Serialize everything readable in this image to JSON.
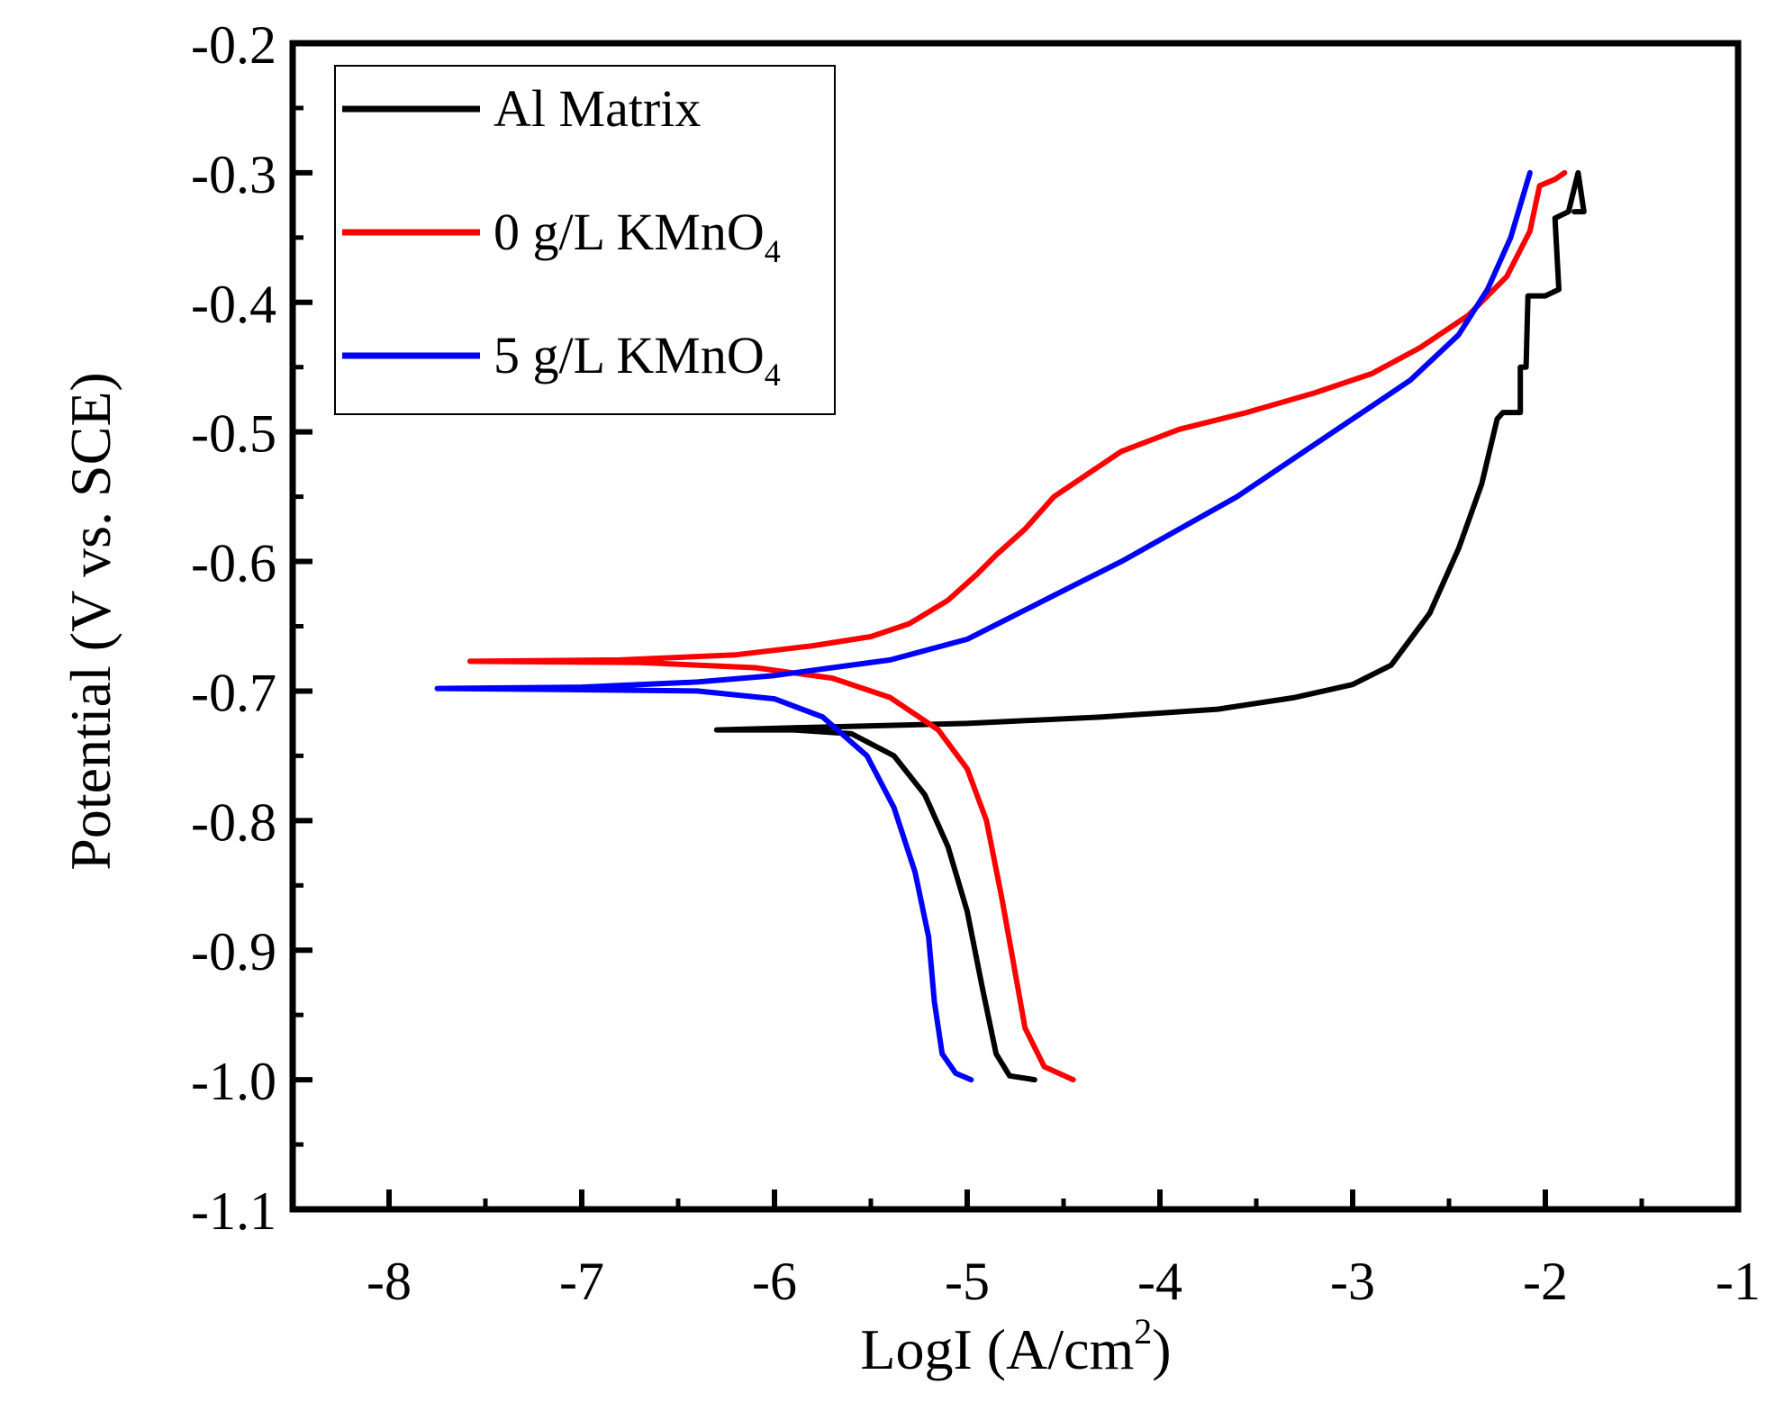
{
  "chart_data": {
    "type": "line",
    "title": "",
    "xlabel": "LogI (A/cm",
    "xlabel_sup": "2",
    "xlabel_close": ")",
    "ylabel": "Potential (V vs. SCE)",
    "xlim": [
      -8.5,
      -1
    ],
    "ylim": [
      -1.1,
      -0.2
    ],
    "x_ticks": [
      -8,
      -7,
      -6,
      -5,
      -4,
      -3,
      -2,
      -1
    ],
    "x_tick_labels": [
      "-8",
      "-7",
      "-6",
      "-5",
      "-4",
      "-3",
      "-2",
      "-1"
    ],
    "y_ticks": [
      -1.1,
      -1.0,
      -0.9,
      -0.8,
      -0.7,
      -0.6,
      -0.5,
      -0.4,
      -0.3,
      -0.2
    ],
    "y_tick_labels": [
      "-1.1",
      "-1.0",
      "-0.9",
      "-0.8",
      "-0.7",
      "-0.6",
      "-0.5",
      "-0.4",
      "-0.3",
      "-0.2"
    ],
    "grid": false,
    "legend_position": "top-left",
    "series": [
      {
        "name": "Al Matrix",
        "label_main": "Al Matrix",
        "label_sub": "",
        "color": "#000000",
        "points": [
          [
            -4.65,
            -1.0
          ],
          [
            -4.78,
            -0.997
          ],
          [
            -4.85,
            -0.98
          ],
          [
            -4.92,
            -0.93
          ],
          [
            -5.0,
            -0.87
          ],
          [
            -5.1,
            -0.82
          ],
          [
            -5.22,
            -0.78
          ],
          [
            -5.38,
            -0.75
          ],
          [
            -5.6,
            -0.733
          ],
          [
            -5.9,
            -0.73
          ],
          [
            -6.3,
            -0.73
          ],
          [
            -5.8,
            -0.728
          ],
          [
            -5.0,
            -0.725
          ],
          [
            -4.3,
            -0.72
          ],
          [
            -3.7,
            -0.714
          ],
          [
            -3.3,
            -0.705
          ],
          [
            -3.0,
            -0.695
          ],
          [
            -2.8,
            -0.68
          ],
          [
            -2.6,
            -0.64
          ],
          [
            -2.45,
            -0.59
          ],
          [
            -2.33,
            -0.54
          ],
          [
            -2.25,
            -0.49
          ],
          [
            -2.22,
            -0.485
          ],
          [
            -2.13,
            -0.485
          ],
          [
            -2.13,
            -0.45
          ],
          [
            -2.1,
            -0.45
          ],
          [
            -2.09,
            -0.395
          ],
          [
            -2.0,
            -0.395
          ],
          [
            -1.93,
            -0.39
          ],
          [
            -1.95,
            -0.335
          ],
          [
            -1.88,
            -0.33
          ],
          [
            -1.83,
            -0.3
          ],
          [
            -1.8,
            -0.33
          ],
          [
            -1.85,
            -0.33
          ]
        ]
      },
      {
        "name": "0 g/L KMnO4",
        "label_main": "0 g/L KMnO",
        "label_sub": "4",
        "color": "#ff0000",
        "points": [
          [
            -4.45,
            -1.0
          ],
          [
            -4.6,
            -0.99
          ],
          [
            -4.7,
            -0.96
          ],
          [
            -4.76,
            -0.91
          ],
          [
            -4.82,
            -0.86
          ],
          [
            -4.9,
            -0.8
          ],
          [
            -5.0,
            -0.76
          ],
          [
            -5.15,
            -0.73
          ],
          [
            -5.4,
            -0.705
          ],
          [
            -5.7,
            -0.69
          ],
          [
            -6.1,
            -0.682
          ],
          [
            -6.7,
            -0.678
          ],
          [
            -7.58,
            -0.677
          ],
          [
            -6.8,
            -0.676
          ],
          [
            -6.2,
            -0.672
          ],
          [
            -5.8,
            -0.665
          ],
          [
            -5.5,
            -0.658
          ],
          [
            -5.3,
            -0.648
          ],
          [
            -5.1,
            -0.63
          ],
          [
            -4.95,
            -0.61
          ],
          [
            -4.85,
            -0.595
          ],
          [
            -4.7,
            -0.575
          ],
          [
            -4.55,
            -0.55
          ],
          [
            -4.4,
            -0.535
          ],
          [
            -4.2,
            -0.515
          ],
          [
            -3.9,
            -0.498
          ],
          [
            -3.55,
            -0.485
          ],
          [
            -3.2,
            -0.47
          ],
          [
            -2.9,
            -0.455
          ],
          [
            -2.65,
            -0.435
          ],
          [
            -2.4,
            -0.41
          ],
          [
            -2.2,
            -0.38
          ],
          [
            -2.08,
            -0.345
          ],
          [
            -2.03,
            -0.31
          ],
          [
            -1.95,
            -0.305
          ],
          [
            -1.9,
            -0.3
          ]
        ]
      },
      {
        "name": "5 g/L KMnO4",
        "label_main": "5 g/L KMnO",
        "label_sub": "4",
        "color": "#0000ff",
        "points": [
          [
            -4.98,
            -1.0
          ],
          [
            -5.06,
            -0.995
          ],
          [
            -5.13,
            -0.98
          ],
          [
            -5.17,
            -0.94
          ],
          [
            -5.2,
            -0.89
          ],
          [
            -5.27,
            -0.84
          ],
          [
            -5.38,
            -0.79
          ],
          [
            -5.52,
            -0.75
          ],
          [
            -5.75,
            -0.72
          ],
          [
            -6.0,
            -0.706
          ],
          [
            -6.4,
            -0.7
          ],
          [
            -7.0,
            -0.699
          ],
          [
            -7.75,
            -0.698
          ],
          [
            -7.0,
            -0.697
          ],
          [
            -6.4,
            -0.693
          ],
          [
            -6.0,
            -0.688
          ],
          [
            -5.7,
            -0.682
          ],
          [
            -5.4,
            -0.676
          ],
          [
            -5.2,
            -0.668
          ],
          [
            -5.0,
            -0.66
          ],
          [
            -4.8,
            -0.645
          ],
          [
            -4.6,
            -0.63
          ],
          [
            -4.4,
            -0.615
          ],
          [
            -4.2,
            -0.6
          ],
          [
            -3.9,
            -0.575
          ],
          [
            -3.6,
            -0.55
          ],
          [
            -3.3,
            -0.52
          ],
          [
            -3.0,
            -0.49
          ],
          [
            -2.7,
            -0.46
          ],
          [
            -2.45,
            -0.425
          ],
          [
            -2.3,
            -0.39
          ],
          [
            -2.18,
            -0.35
          ],
          [
            -2.08,
            -0.3
          ]
        ]
      }
    ]
  }
}
